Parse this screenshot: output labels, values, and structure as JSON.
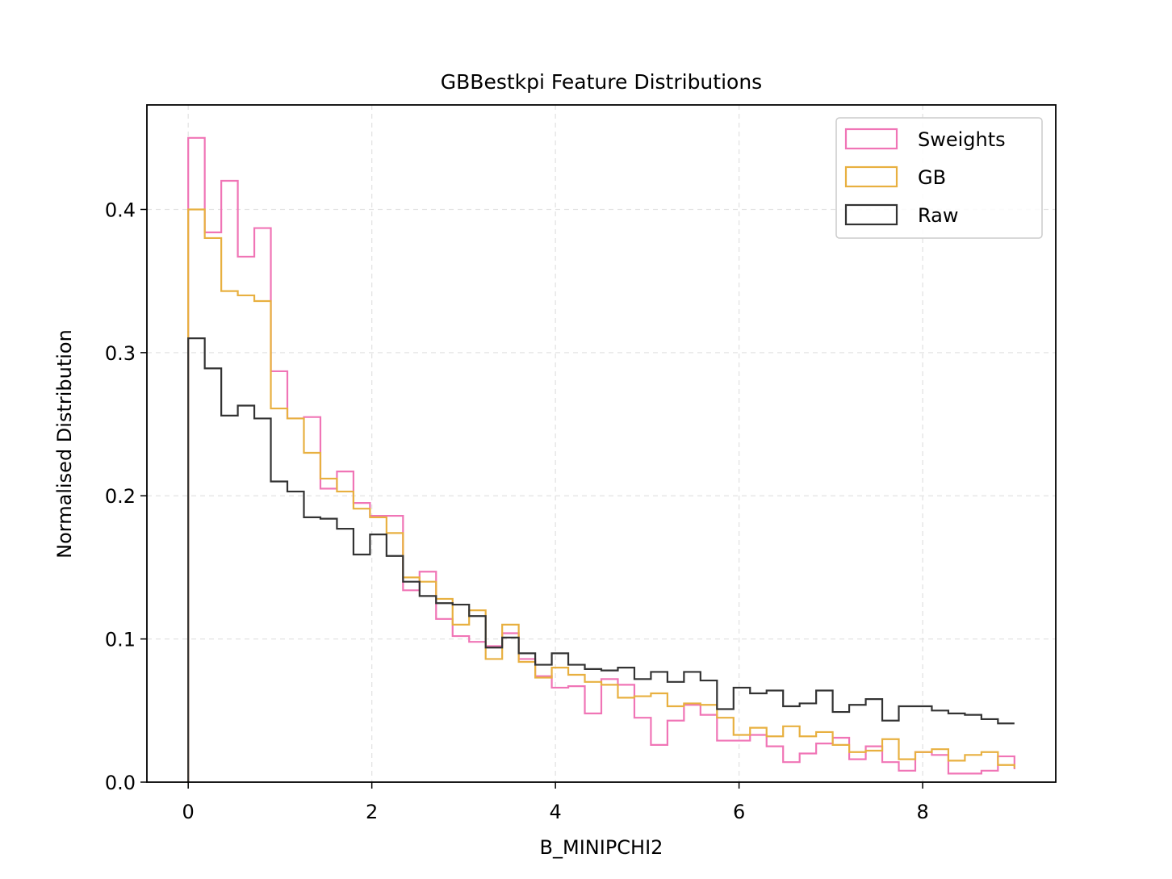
{
  "chart_data": {
    "type": "histogram-step",
    "title": "GBBestkpi Feature Distributions",
    "xlabel": "B_MINIPCHI2",
    "ylabel": "Normalised Distribution",
    "xlim": [
      -0.45,
      9.45
    ],
    "ylim": [
      0.0,
      0.473
    ],
    "xticks": [
      0,
      2,
      4,
      6,
      8
    ],
    "xtick_labels": [
      "0",
      "2",
      "4",
      "6",
      "8"
    ],
    "yticks": [
      0.0,
      0.1,
      0.2,
      0.3,
      0.4
    ],
    "ytick_labels": [
      "0.0",
      "0.1",
      "0.2",
      "0.3",
      "0.4"
    ],
    "grid": true,
    "legend_position": "upper right",
    "bin_edges": [
      0.0,
      0.18,
      0.36,
      0.54,
      0.72,
      0.9,
      1.08,
      1.26,
      1.44,
      1.62,
      1.8,
      1.98,
      2.16,
      2.34,
      2.52,
      2.7,
      2.88,
      3.06,
      3.24,
      3.42,
      3.6,
      3.78,
      3.96,
      4.14,
      4.32,
      4.5,
      4.68,
      4.86,
      5.04,
      5.22,
      5.4,
      5.58,
      5.76,
      5.94,
      6.12,
      6.3,
      6.48,
      6.66,
      6.84,
      7.02,
      7.2,
      7.38,
      7.56,
      7.74,
      7.92,
      8.1,
      8.28,
      8.46,
      8.64,
      8.82,
      9.0
    ],
    "series": [
      {
        "name": "Sweights",
        "color": "#f075b6",
        "values": [
          0.45,
          0.384,
          0.42,
          0.367,
          0.387,
          0.287,
          0.254,
          0.255,
          0.205,
          0.217,
          0.195,
          0.186,
          0.186,
          0.134,
          0.147,
          0.114,
          0.102,
          0.098,
          0.095,
          0.104,
          0.086,
          0.074,
          0.066,
          0.067,
          0.048,
          0.072,
          0.068,
          0.045,
          0.026,
          0.043,
          0.054,
          0.047,
          0.029,
          0.029,
          0.033,
          0.025,
          0.014,
          0.02,
          0.027,
          0.031,
          0.016,
          0.025,
          0.014,
          0.008,
          0.021,
          0.019,
          0.006,
          0.006,
          0.008,
          0.018,
          0.009
        ]
      },
      {
        "name": "GB",
        "color": "#e8b040",
        "values": [
          0.4,
          0.38,
          0.343,
          0.34,
          0.336,
          0.261,
          0.254,
          0.23,
          0.212,
          0.203,
          0.191,
          0.185,
          0.174,
          0.143,
          0.14,
          0.128,
          0.11,
          0.12,
          0.086,
          0.11,
          0.084,
          0.073,
          0.08,
          0.075,
          0.07,
          0.068,
          0.059,
          0.06,
          0.062,
          0.053,
          0.055,
          0.054,
          0.045,
          0.033,
          0.038,
          0.032,
          0.039,
          0.032,
          0.035,
          0.026,
          0.021,
          0.022,
          0.03,
          0.016,
          0.021,
          0.023,
          0.015,
          0.019,
          0.021,
          0.012,
          0.01
        ]
      },
      {
        "name": "Raw",
        "color": "#333333",
        "values": [
          0.31,
          0.289,
          0.256,
          0.263,
          0.254,
          0.21,
          0.203,
          0.185,
          0.184,
          0.177,
          0.159,
          0.173,
          0.158,
          0.14,
          0.13,
          0.125,
          0.124,
          0.116,
          0.094,
          0.101,
          0.09,
          0.082,
          0.09,
          0.082,
          0.079,
          0.078,
          0.08,
          0.072,
          0.077,
          0.07,
          0.077,
          0.071,
          0.051,
          0.066,
          0.062,
          0.064,
          0.053,
          0.055,
          0.064,
          0.049,
          0.054,
          0.058,
          0.043,
          0.053,
          0.053,
          0.05,
          0.048,
          0.047,
          0.044,
          0.041,
          0.041
        ]
      }
    ]
  }
}
